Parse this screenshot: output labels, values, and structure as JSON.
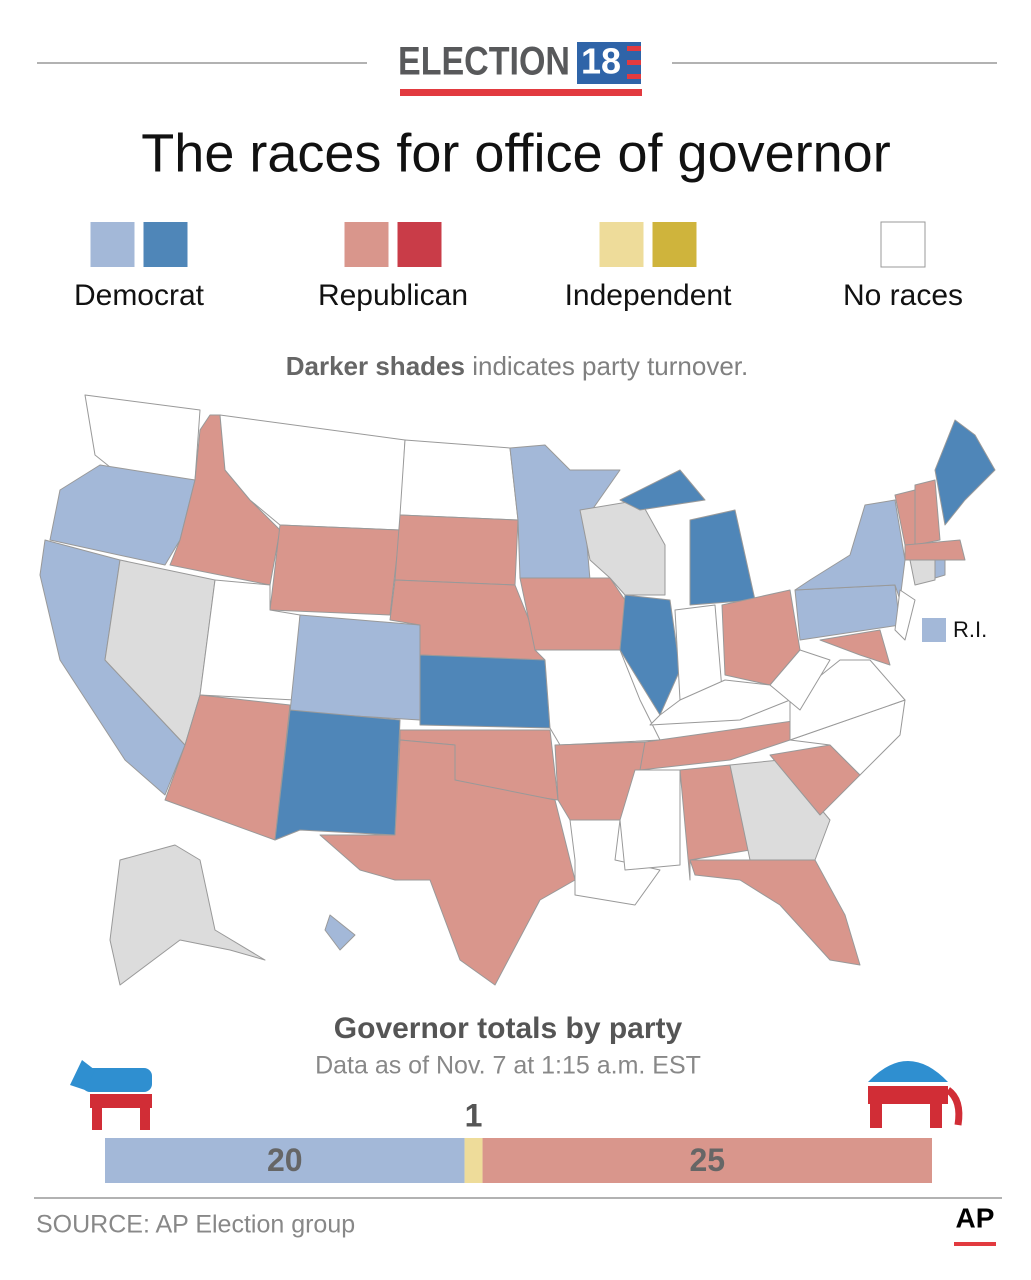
{
  "header": {
    "logo_word": "ELECTION",
    "logo_year": "18"
  },
  "title": "The races for office of governor",
  "legend": [
    {
      "label": "Democrat",
      "colors": [
        "#a3b8d8",
        "#4f86b8"
      ]
    },
    {
      "label": "Republican",
      "colors": [
        "#d9968c",
        "#c93c48"
      ]
    },
    {
      "label": "Independent",
      "colors": [
        "#eedc9a",
        "#cfb43c"
      ]
    },
    {
      "label": "No races",
      "colors": [
        "#ffffff"
      ]
    }
  ],
  "note": {
    "bold": "Darker shades",
    "rest": "indicates party turnover."
  },
  "map": {
    "ri_label": "R.I."
  },
  "chart_data": {
    "type": "bar",
    "title": "Governor totals by party",
    "subtitle": "Data as of Nov. 7 at 1:15 a.m. EST",
    "values": [
      20,
      1,
      25
    ],
    "colors": [
      "#a3b8d8",
      "#eedc9a",
      "#d9968c"
    ]
  },
  "footer": {
    "source": "SOURCE: AP Election group",
    "logo": "AP"
  }
}
